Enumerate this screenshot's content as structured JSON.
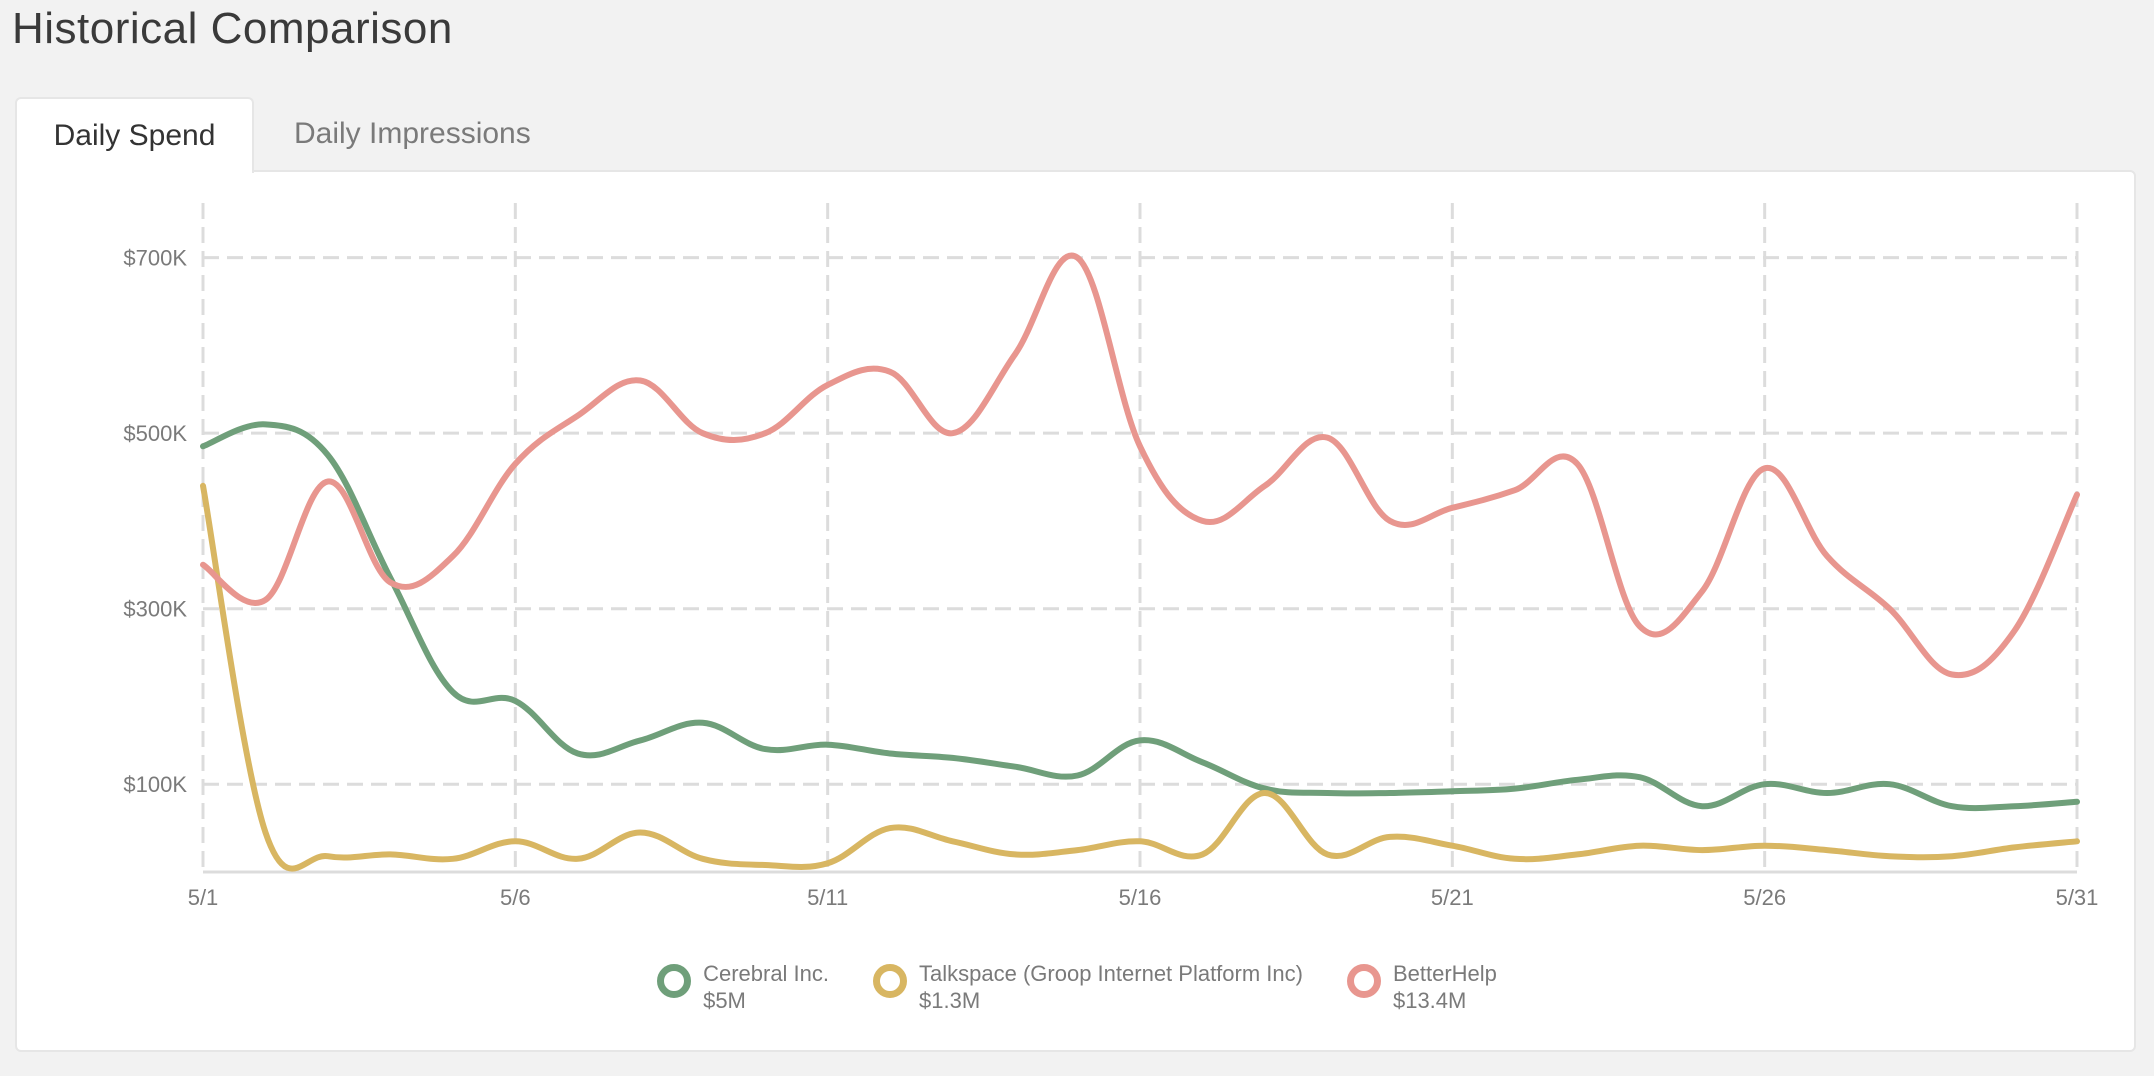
{
  "page": {
    "title": "Historical Comparison"
  },
  "tabs": [
    {
      "label": "Daily Spend",
      "active": true
    },
    {
      "label": "Daily Impressions",
      "active": false
    }
  ],
  "legend": [
    {
      "name": "Cerebral Inc.",
      "total": "$5M",
      "color": "#6f9f7a"
    },
    {
      "name": "Talkspace (Groop Internet Platform Inc)",
      "total": "$1.3M",
      "color": "#d8b662"
    },
    {
      "name": "BetterHelp",
      "total": "$13.4M",
      "color": "#e8968f"
    }
  ],
  "chart_data": {
    "type": "line",
    "x": [
      "5/1",
      "5/2",
      "5/3",
      "5/4",
      "5/5",
      "5/6",
      "5/7",
      "5/8",
      "5/9",
      "5/10",
      "5/11",
      "5/12",
      "5/13",
      "5/14",
      "5/15",
      "5/16",
      "5/17",
      "5/18",
      "5/19",
      "5/20",
      "5/21",
      "5/22",
      "5/23",
      "5/24",
      "5/25",
      "5/26",
      "5/27",
      "5/28",
      "5/29",
      "5/30",
      "5/31"
    ],
    "x_tick_labels": [
      "5/1",
      "5/6",
      "5/11",
      "5/16",
      "5/21",
      "5/26",
      "5/31"
    ],
    "y_tick_labels": [
      "$100K",
      "$300K",
      "$500K",
      "$700K"
    ],
    "y_ticks": [
      100000,
      300000,
      500000,
      700000
    ],
    "ylim": [
      0,
      760000
    ],
    "grid": true,
    "legend_position": "bottom-center",
    "series": [
      {
        "name": "Cerebral Inc.",
        "color": "#6f9f7a",
        "values": [
          485000,
          510000,
          475000,
          335000,
          205000,
          195000,
          135000,
          150000,
          170000,
          140000,
          145000,
          135000,
          130000,
          120000,
          110000,
          150000,
          125000,
          95000,
          90000,
          90000,
          92000,
          95000,
          105000,
          108000,
          75000,
          100000,
          90000,
          100000,
          75000,
          75000,
          80000
        ]
      },
      {
        "name": "Talkspace (Groop Internet Platform Inc)",
        "color": "#d8b662",
        "values": [
          440000,
          45000,
          18000,
          20000,
          15000,
          35000,
          15000,
          45000,
          15000,
          8000,
          10000,
          50000,
          35000,
          20000,
          25000,
          35000,
          20000,
          90000,
          20000,
          40000,
          30000,
          15000,
          20000,
          30000,
          25000,
          30000,
          25000,
          18000,
          18000,
          28000,
          35000
        ]
      },
      {
        "name": "BetterHelp",
        "color": "#e8968f",
        "values": [
          350000,
          310000,
          445000,
          330000,
          360000,
          465000,
          520000,
          560000,
          500000,
          500000,
          555000,
          570000,
          500000,
          590000,
          700000,
          485000,
          400000,
          440000,
          495000,
          400000,
          415000,
          435000,
          465000,
          280000,
          320000,
          460000,
          360000,
          300000,
          225000,
          275000,
          430000
        ]
      }
    ]
  }
}
